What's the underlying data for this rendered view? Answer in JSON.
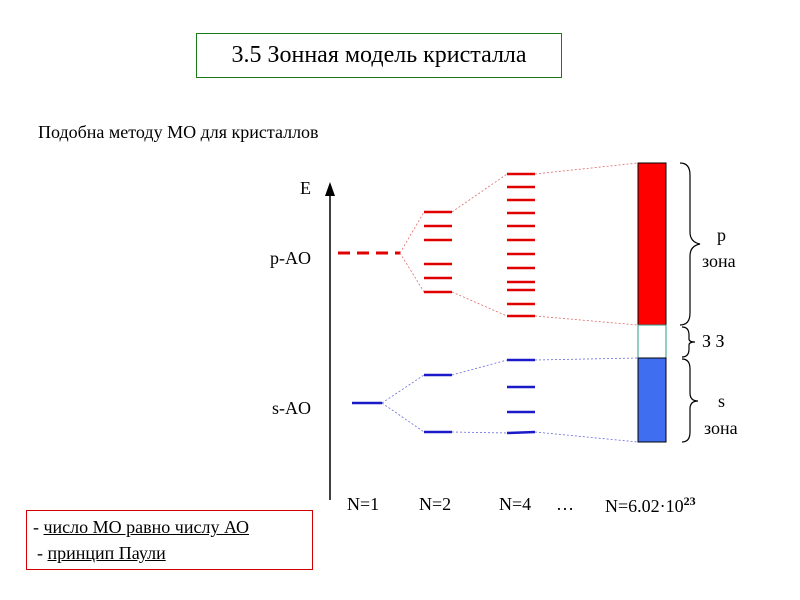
{
  "title": "3.5 Зонная модель кристалла",
  "subtitle": "Подобна методу МО для кристаллов",
  "axis": {
    "label": "E"
  },
  "levels": {
    "p_label": "p-AO",
    "s_label": "s-AO"
  },
  "columns": {
    "n1": "N=1",
    "n2": "N=2",
    "n4": "N=4",
    "ellipsis": "…",
    "nlarge": "N=6.02·10",
    "nlarge_exp": "23"
  },
  "bands": {
    "p_band_label_1": "p",
    "p_band_label_2": "зона",
    "gap_label": "З З",
    "s_band_label_1": "s",
    "s_band_label_2": "зона"
  },
  "notes": {
    "dash1": "- ",
    "item1": "число МО равно числу АО",
    "dash2": "- ",
    "item2": "принцип Паули"
  },
  "colors": {
    "p": "#e00000",
    "s": "#1a1ac8",
    "p_band": "#ff0000",
    "s_band": "#3f6ef0",
    "gap_band": "#ffffff"
  }
}
